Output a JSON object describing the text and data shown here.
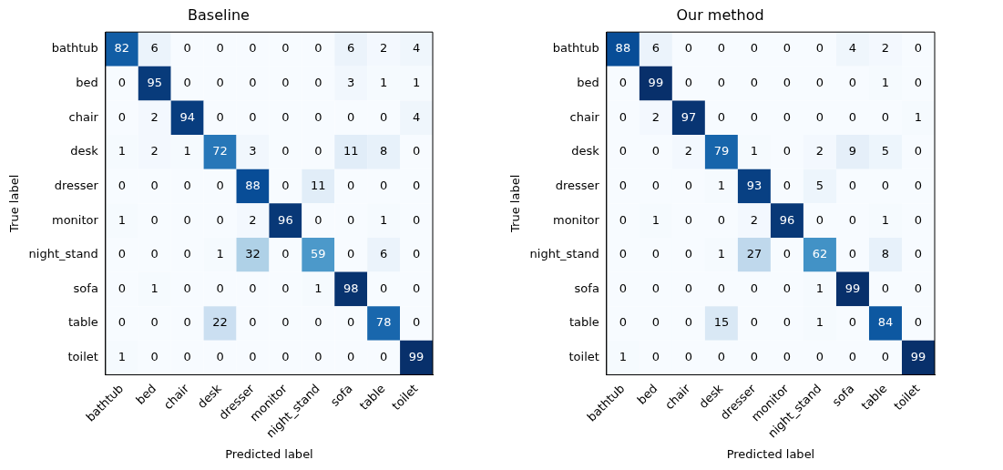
{
  "chart_data": [
    {
      "type": "heatmap",
      "title": "Baseline",
      "xlabel": "Predicted label",
      "ylabel": "True label",
      "data_labels": true,
      "categories": [
        "bathtub",
        "bed",
        "chair",
        "desk",
        "dresser",
        "monitor",
        "night_stand",
        "sofa",
        "table",
        "toilet"
      ],
      "y_categories": [
        "bathtub",
        "bed",
        "chair",
        "desk",
        "dresser",
        "monitor",
        "night_stand",
        "sofa",
        "table",
        "toilet"
      ],
      "cells": [
        [
          82,
          6,
          0,
          0,
          0,
          0,
          0,
          6,
          2,
          4
        ],
        [
          0,
          95,
          0,
          0,
          0,
          0,
          0,
          3,
          1,
          1
        ],
        [
          0,
          2,
          94,
          0,
          0,
          0,
          0,
          0,
          0,
          4
        ],
        [
          1,
          2,
          1,
          72,
          3,
          0,
          0,
          11,
          8,
          0
        ],
        [
          0,
          0,
          0,
          0,
          88,
          0,
          11,
          0,
          0,
          0
        ],
        [
          1,
          0,
          0,
          0,
          2,
          96,
          0,
          0,
          1,
          0
        ],
        [
          0,
          0,
          0,
          1,
          32,
          0,
          59,
          0,
          6,
          0
        ],
        [
          0,
          1,
          0,
          0,
          0,
          0,
          1,
          98,
          0,
          0
        ],
        [
          0,
          0,
          0,
          22,
          0,
          0,
          0,
          0,
          78,
          0
        ],
        [
          1,
          0,
          0,
          0,
          0,
          0,
          0,
          0,
          0,
          99
        ]
      ]
    },
    {
      "type": "heatmap",
      "title": "Our method",
      "xlabel": "Predicted label",
      "ylabel": "True label",
      "data_labels": true,
      "categories": [
        "bathtub",
        "bed",
        "chair",
        "desk",
        "dresser",
        "monitor",
        "night_stand",
        "sofa",
        "table",
        "toilet"
      ],
      "y_categories": [
        "bathtub",
        "bed",
        "chair",
        "desk",
        "dresser",
        "monitor",
        "night_stand",
        "sofa",
        "table",
        "toilet"
      ],
      "cells": [
        [
          88,
          6,
          0,
          0,
          0,
          0,
          0,
          4,
          2,
          0
        ],
        [
          0,
          99,
          0,
          0,
          0,
          0,
          0,
          0,
          1,
          0
        ],
        [
          0,
          2,
          97,
          0,
          0,
          0,
          0,
          0,
          0,
          1
        ],
        [
          0,
          0,
          2,
          79,
          1,
          0,
          2,
          9,
          5,
          0
        ],
        [
          0,
          0,
          0,
          1,
          93,
          0,
          5,
          0,
          0,
          0
        ],
        [
          0,
          1,
          0,
          0,
          2,
          96,
          0,
          0,
          1,
          0
        ],
        [
          0,
          0,
          0,
          1,
          27,
          0,
          62,
          0,
          8,
          0
        ],
        [
          0,
          0,
          0,
          0,
          0,
          0,
          1,
          99,
          0,
          0
        ],
        [
          0,
          0,
          0,
          15,
          0,
          0,
          1,
          0,
          84,
          0
        ],
        [
          1,
          0,
          0,
          0,
          0,
          0,
          0,
          0,
          0,
          99
        ]
      ]
    }
  ]
}
